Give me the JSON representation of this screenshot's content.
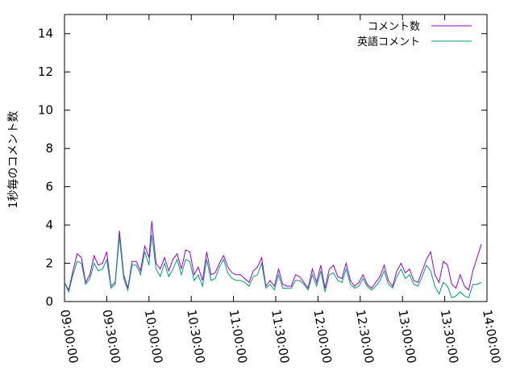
{
  "chart_data": {
    "type": "line",
    "ylabel": "1秒毎のコメント数",
    "xlabel": "",
    "ylim": [
      0,
      15
    ],
    "xlim_minutes": [
      540,
      840
    ],
    "yticks": [
      0,
      2,
      4,
      6,
      8,
      10,
      12,
      14
    ],
    "xticks": [
      {
        "m": 540,
        "label": "09:00:00"
      },
      {
        "m": 570,
        "label": "09:30:00"
      },
      {
        "m": 600,
        "label": "10:00:00"
      },
      {
        "m": 630,
        "label": "10:30:00"
      },
      {
        "m": 660,
        "label": "11:00:00"
      },
      {
        "m": 690,
        "label": "11:30:00"
      },
      {
        "m": 720,
        "label": "12:00:00"
      },
      {
        "m": 750,
        "label": "12:30:00"
      },
      {
        "m": 780,
        "label": "13:00:00"
      },
      {
        "m": 810,
        "label": "13:30:00"
      },
      {
        "m": 840,
        "label": "14:00:00"
      }
    ],
    "legend_position": "top-right",
    "grid": false,
    "series": [
      {
        "name": "コメント数",
        "color": "#9400d3",
        "points": [
          [
            540,
            1.0
          ],
          [
            543,
            0.6
          ],
          [
            546,
            1.6
          ],
          [
            549,
            2.5
          ],
          [
            552,
            2.3
          ],
          [
            555,
            1.0
          ],
          [
            558,
            1.4
          ],
          [
            561,
            2.4
          ],
          [
            564,
            1.9
          ],
          [
            567,
            2.0
          ],
          [
            570,
            2.6
          ],
          [
            573,
            0.8
          ],
          [
            576,
            1.0
          ],
          [
            579,
            3.7
          ],
          [
            582,
            1.4
          ],
          [
            585,
            0.7
          ],
          [
            588,
            2.1
          ],
          [
            591,
            2.1
          ],
          [
            594,
            1.6
          ],
          [
            597,
            2.9
          ],
          [
            600,
            2.3
          ],
          [
            602,
            4.2
          ],
          [
            605,
            2.0
          ],
          [
            608,
            1.7
          ],
          [
            611,
            2.3
          ],
          [
            614,
            1.6
          ],
          [
            617,
            2.2
          ],
          [
            620,
            2.5
          ],
          [
            623,
            1.7
          ],
          [
            626,
            2.7
          ],
          [
            629,
            2.6
          ],
          [
            632,
            1.4
          ],
          [
            635,
            1.8
          ],
          [
            638,
            1.1
          ],
          [
            641,
            2.6
          ],
          [
            644,
            1.4
          ],
          [
            647,
            1.5
          ],
          [
            650,
            2.0
          ],
          [
            653,
            2.4
          ],
          [
            656,
            1.8
          ],
          [
            659,
            1.5
          ],
          [
            662,
            1.4
          ],
          [
            665,
            1.4
          ],
          [
            668,
            1.2
          ],
          [
            671,
            1.0
          ],
          [
            674,
            1.6
          ],
          [
            677,
            1.8
          ],
          [
            680,
            2.3
          ],
          [
            683,
            0.8
          ],
          [
            686,
            1.1
          ],
          [
            689,
            0.8
          ],
          [
            692,
            1.7
          ],
          [
            695,
            0.9
          ],
          [
            698,
            0.8
          ],
          [
            701,
            0.8
          ],
          [
            704,
            1.4
          ],
          [
            707,
            1.3
          ],
          [
            710,
            1.0
          ],
          [
            713,
            0.7
          ],
          [
            716,
            1.7
          ],
          [
            719,
            1.0
          ],
          [
            722,
            1.9
          ],
          [
            725,
            0.7
          ],
          [
            728,
            1.7
          ],
          [
            731,
            1.9
          ],
          [
            734,
            1.3
          ],
          [
            737,
            1.2
          ],
          [
            740,
            2.0
          ],
          [
            743,
            1.1
          ],
          [
            746,
            0.8
          ],
          [
            749,
            1.0
          ],
          [
            752,
            1.4
          ],
          [
            755,
            0.9
          ],
          [
            758,
            0.7
          ],
          [
            761,
            1.0
          ],
          [
            764,
            1.3
          ],
          [
            767,
            1.9
          ],
          [
            770,
            1.1
          ],
          [
            773,
            0.8
          ],
          [
            776,
            1.6
          ],
          [
            779,
            2.0
          ],
          [
            782,
            1.5
          ],
          [
            785,
            1.7
          ],
          [
            788,
            1.1
          ],
          [
            791,
            1.0
          ],
          [
            794,
            1.6
          ],
          [
            797,
            2.2
          ],
          [
            800,
            2.6
          ],
          [
            803,
            1.4
          ],
          [
            806,
            1.0
          ],
          [
            809,
            2.1
          ],
          [
            812,
            1.9
          ],
          [
            815,
            0.9
          ],
          [
            818,
            0.7
          ],
          [
            821,
            1.4
          ],
          [
            824,
            0.8
          ],
          [
            827,
            0.6
          ],
          [
            830,
            1.6
          ],
          [
            833,
            2.3
          ],
          [
            836,
            3.0
          ]
        ]
      },
      {
        "name": "英語コメント",
        "color": "#009e73",
        "points": [
          [
            540,
            1.0
          ],
          [
            543,
            0.5
          ],
          [
            546,
            1.4
          ],
          [
            549,
            2.1
          ],
          [
            552,
            2.0
          ],
          [
            555,
            0.9
          ],
          [
            558,
            1.2
          ],
          [
            561,
            2.0
          ],
          [
            564,
            1.6
          ],
          [
            567,
            1.7
          ],
          [
            570,
            2.2
          ],
          [
            573,
            0.7
          ],
          [
            576,
            0.9
          ],
          [
            579,
            3.4
          ],
          [
            582,
            1.2
          ],
          [
            585,
            0.6
          ],
          [
            588,
            1.9
          ],
          [
            591,
            1.9
          ],
          [
            594,
            1.4
          ],
          [
            597,
            2.6
          ],
          [
            600,
            1.9
          ],
          [
            602,
            3.5
          ],
          [
            605,
            1.7
          ],
          [
            608,
            1.3
          ],
          [
            611,
            2.0
          ],
          [
            614,
            1.3
          ],
          [
            617,
            1.7
          ],
          [
            620,
            2.2
          ],
          [
            623,
            1.4
          ],
          [
            626,
            2.2
          ],
          [
            629,
            2.1
          ],
          [
            632,
            1.1
          ],
          [
            635,
            1.4
          ],
          [
            638,
            0.8
          ],
          [
            641,
            2.2
          ],
          [
            644,
            1.1
          ],
          [
            647,
            1.2
          ],
          [
            650,
            1.8
          ],
          [
            653,
            2.2
          ],
          [
            656,
            1.5
          ],
          [
            659,
            1.2
          ],
          [
            662,
            1.1
          ],
          [
            665,
            1.1
          ],
          [
            668,
            1.0
          ],
          [
            671,
            0.8
          ],
          [
            674,
            1.3
          ],
          [
            677,
            1.4
          ],
          [
            680,
            2.0
          ],
          [
            683,
            0.7
          ],
          [
            686,
            0.9
          ],
          [
            689,
            0.6
          ],
          [
            692,
            1.4
          ],
          [
            695,
            0.7
          ],
          [
            698,
            0.7
          ],
          [
            701,
            0.7
          ],
          [
            704,
            1.1
          ],
          [
            707,
            1.1
          ],
          [
            710,
            0.9
          ],
          [
            713,
            0.6
          ],
          [
            716,
            1.4
          ],
          [
            719,
            0.8
          ],
          [
            722,
            1.6
          ],
          [
            725,
            0.5
          ],
          [
            728,
            1.4
          ],
          [
            731,
            1.5
          ],
          [
            734,
            1.1
          ],
          [
            737,
            1.0
          ],
          [
            740,
            1.7
          ],
          [
            743,
            0.9
          ],
          [
            746,
            0.7
          ],
          [
            749,
            0.8
          ],
          [
            752,
            1.2
          ],
          [
            755,
            0.8
          ],
          [
            758,
            0.6
          ],
          [
            761,
            0.8
          ],
          [
            764,
            1.1
          ],
          [
            767,
            1.6
          ],
          [
            770,
            0.9
          ],
          [
            773,
            0.7
          ],
          [
            776,
            1.3
          ],
          [
            779,
            1.7
          ],
          [
            782,
            1.2
          ],
          [
            785,
            1.4
          ],
          [
            788,
            0.9
          ],
          [
            791,
            0.8
          ],
          [
            794,
            1.3
          ],
          [
            797,
            1.9
          ],
          [
            800,
            1.6
          ],
          [
            803,
            0.8
          ],
          [
            806,
            0.4
          ],
          [
            809,
            1.0
          ],
          [
            812,
            0.8
          ],
          [
            815,
            0.2
          ],
          [
            818,
            0.3
          ],
          [
            821,
            0.5
          ],
          [
            824,
            0.3
          ],
          [
            827,
            0.2
          ],
          [
            830,
            0.9
          ],
          [
            833,
            0.9
          ],
          [
            836,
            1.0
          ]
        ]
      }
    ]
  }
}
